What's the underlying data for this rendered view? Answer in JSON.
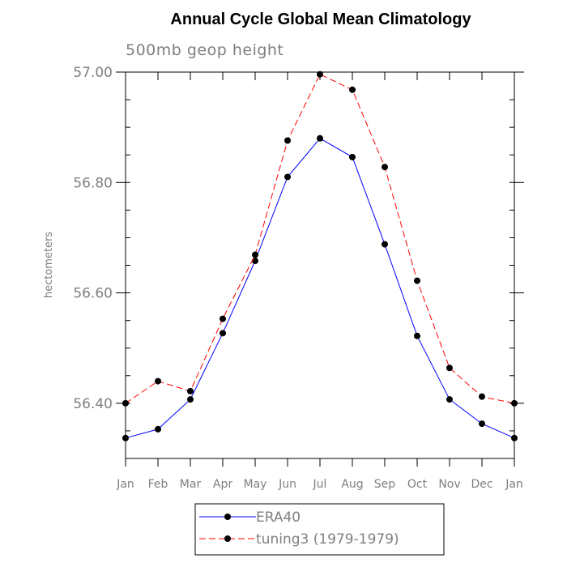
{
  "chart_data": {
    "type": "line",
    "title": "Annual Cycle Global Mean Climatology",
    "subtitle": "500mb geop height",
    "xlabel": "",
    "ylabel": "hectometers",
    "categories": [
      "Jan",
      "Feb",
      "Mar",
      "Apr",
      "May",
      "Jun",
      "Jul",
      "Aug",
      "Sep",
      "Oct",
      "Nov",
      "Dec",
      "Jan"
    ],
    "ylim": [
      56.3,
      57.0
    ],
    "yticks": [
      {
        "value": 56.4,
        "label": "56.40"
      },
      {
        "value": 56.6,
        "label": "56.60"
      },
      {
        "value": 56.8,
        "label": "56.80"
      },
      {
        "value": 57.0,
        "label": "57.00"
      }
    ],
    "yminor_step": 0.05,
    "grid": false,
    "legend_position": "bottom",
    "series": [
      {
        "name": "ERA40",
        "color": "#0000ff",
        "dash": "solid",
        "values": [
          56.337,
          56.353,
          56.407,
          56.527,
          56.658,
          56.81,
          56.88,
          56.846,
          56.688,
          56.522,
          56.407,
          56.363,
          56.337
        ]
      },
      {
        "name": "tuning3 (1979-1979)",
        "color": "#ff0000",
        "dash": "dashed",
        "values": [
          56.4,
          56.44,
          56.422,
          56.553,
          56.669,
          56.876,
          56.996,
          56.968,
          56.828,
          56.622,
          56.464,
          56.412,
          56.4
        ]
      }
    ]
  }
}
